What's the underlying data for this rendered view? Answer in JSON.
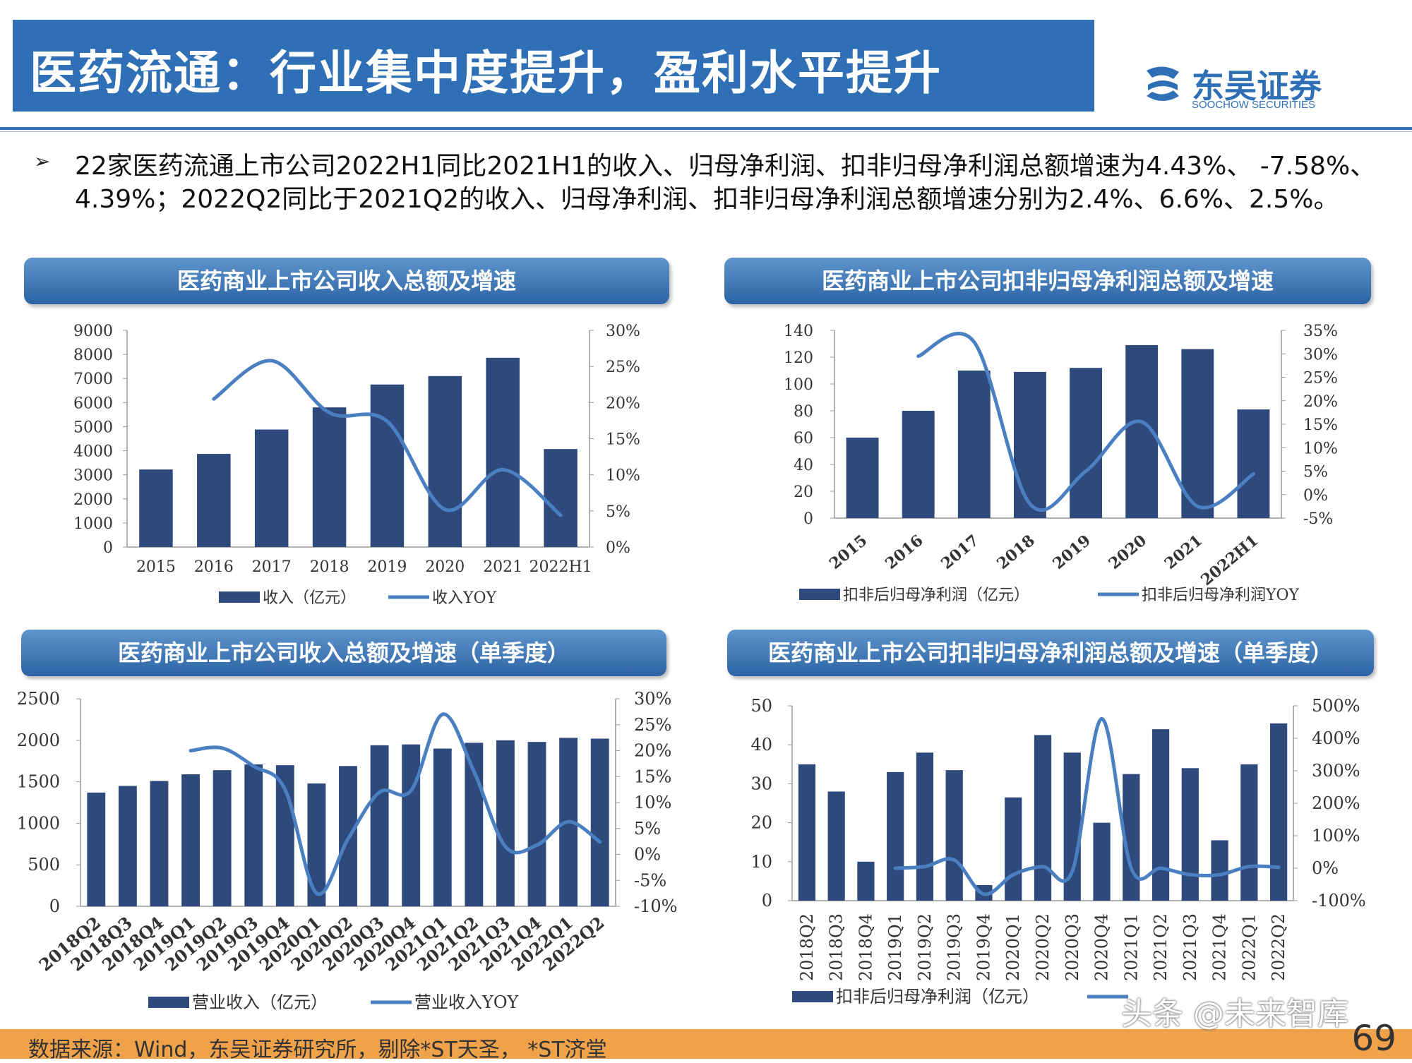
{
  "header": {
    "title": "医药流通：行业集中度提升，盈利水平提升",
    "logo_cn": "东吴证券",
    "logo_en": "SOOCHOW SECURITIES",
    "logo_mark": "SCS"
  },
  "bullet": {
    "symbol": "➢",
    "text": "22家医药流通上市公司2022H1同比2021H1的收入、归母净利润、扣非归母净利润总额增速为4.43%、 -7.58%、4.39%；2022Q2同比于2021Q2的收入、归母净利润、扣非归母净利润总额增速分别为2.4%、6.6%、2.5%。"
  },
  "chart_titles": {
    "c1": "医药商业上市公司收入总额及增速",
    "c2": "医药商业上市公司扣非归母净利润总额及增速",
    "c3": "医药商业上市公司收入总额及增速（单季度）",
    "c4": "医药商业上市公司扣非归母净利润总额及增速（单季度）"
  },
  "chart_data": [
    {
      "id": "c1",
      "type": "bar+line",
      "categories": [
        "2015",
        "2016",
        "2017",
        "2018",
        "2019",
        "2020",
        "2021",
        "2022H1"
      ],
      "bars": {
        "name": "收入（亿元）",
        "values": [
          3220,
          3870,
          4880,
          5800,
          6750,
          7100,
          7860,
          4070
        ]
      },
      "line": {
        "name": "收入YOY",
        "values": [
          null,
          20.5,
          25.8,
          18.6,
          17.4,
          5.2,
          10.7,
          4.4
        ]
      },
      "y_left": {
        "min": 0,
        "max": 9000,
        "step": 1000,
        "ticks": [
          "0",
          "1000",
          "2000",
          "3000",
          "4000",
          "5000",
          "6000",
          "7000",
          "8000",
          "9000"
        ]
      },
      "y_right": {
        "min": 0,
        "max": 30,
        "step": 5,
        "ticks": [
          "0%",
          "5%",
          "10%",
          "15%",
          "20%",
          "25%",
          "30%"
        ]
      },
      "x_rotate": false,
      "bar_color": "#2e4a7d",
      "line_color": "#4a80c2",
      "legend_position": "bottom"
    },
    {
      "id": "c2",
      "type": "bar+line",
      "categories": [
        "2015",
        "2016",
        "2017",
        "2018",
        "2019",
        "2020",
        "2021",
        "2022H1"
      ],
      "bars": {
        "name": "扣非后归母净利润（亿元）",
        "values": [
          60,
          80,
          110,
          109,
          112,
          129,
          126,
          81
        ]
      },
      "line": {
        "name": "扣非后归母净利润YOY",
        "values": [
          null,
          29.5,
          32.5,
          -2,
          5,
          15.5,
          -2.5,
          4.4
        ]
      },
      "y_left": {
        "min": 0,
        "max": 140,
        "step": 20,
        "ticks": [
          "0",
          "20",
          "40",
          "60",
          "80",
          "100",
          "120",
          "140"
        ]
      },
      "y_right": {
        "min": -5,
        "max": 35,
        "step": 5,
        "ticks": [
          "-5%",
          "0%",
          "5%",
          "10%",
          "15%",
          "20%",
          "25%",
          "30%",
          "35%"
        ]
      },
      "x_rotate": true,
      "bar_color": "#2e4a7d",
      "line_color": "#4a80c2",
      "legend_position": "bottom"
    },
    {
      "id": "c3",
      "type": "bar+line",
      "categories": [
        "2018Q2",
        "2018Q3",
        "2018Q4",
        "2019Q1",
        "2019Q2",
        "2019Q3",
        "2019Q4",
        "2020Q1",
        "2020Q2",
        "2020Q3",
        "2020Q4",
        "2021Q1",
        "2021Q2",
        "2021Q3",
        "2021Q4",
        "2022Q1",
        "2022Q2"
      ],
      "bars": {
        "name": "营业收入（亿元）",
        "values": [
          1370,
          1450,
          1510,
          1590,
          1640,
          1710,
          1700,
          1480,
          1690,
          1940,
          1950,
          1900,
          1970,
          2000,
          1980,
          2030,
          2020
        ]
      },
      "line": {
        "name": "营业收入YOY",
        "values": [
          null,
          null,
          null,
          20,
          20.5,
          17,
          12.5,
          -7.5,
          3,
          12,
          12.3,
          27,
          16,
          1.5,
          1.8,
          6.3,
          2.4
        ]
      },
      "y_left": {
        "min": 0,
        "max": 2500,
        "step": 500,
        "ticks": [
          "0",
          "500",
          "1000",
          "1500",
          "2000",
          "2500"
        ]
      },
      "y_right": {
        "min": -10,
        "max": 30,
        "step": 5,
        "ticks": [
          "-10%",
          "-5%",
          "0%",
          "5%",
          "10%",
          "15%",
          "20%",
          "25%",
          "30%"
        ]
      },
      "x_rotate": true,
      "bar_color": "#2e4a7d",
      "line_color": "#4a80c2",
      "legend_position": "bottom"
    },
    {
      "id": "c4",
      "type": "bar+line",
      "categories": [
        "2018Q2",
        "2018Q3",
        "2018Q4",
        "2019Q1",
        "2019Q2",
        "2019Q3",
        "2019Q4",
        "2020Q1",
        "2020Q2",
        "2020Q3",
        "2020Q4",
        "2021Q1",
        "2021Q2",
        "2021Q3",
        "2021Q4",
        "2022Q1",
        "2022Q2"
      ],
      "bars": {
        "name": "扣非后归母净利润（亿元）",
        "values": [
          35,
          28,
          10,
          33,
          38,
          33.5,
          4,
          26.5,
          42.5,
          38,
          20,
          32.5,
          44,
          34,
          15.5,
          35,
          45.5
        ]
      },
      "line": {
        "name": "",
        "values": [
          null,
          null,
          null,
          0,
          5,
          25,
          -80,
          -20,
          5,
          -10,
          460,
          0,
          0,
          -20,
          -20,
          5,
          3
        ]
      },
      "y_left": {
        "min": 0,
        "max": 50,
        "step": 10,
        "ticks": [
          "0",
          "10",
          "20",
          "30",
          "40",
          "50"
        ]
      },
      "y_right": {
        "min": -100,
        "max": 500,
        "step": 100,
        "ticks": [
          "-100%",
          "0%",
          "100%",
          "200%",
          "300%",
          "400%",
          "500%"
        ]
      },
      "x_rotate": "vertical",
      "bar_color": "#2e4a7d",
      "line_color": "#4a80c2",
      "legend_position": "bottom"
    }
  ],
  "footer": {
    "source": "数据来源：Wind，东吴证券研究所，剔除*ST天圣， *ST济堂",
    "page": "69"
  },
  "watermark": "头条 @未来智库"
}
